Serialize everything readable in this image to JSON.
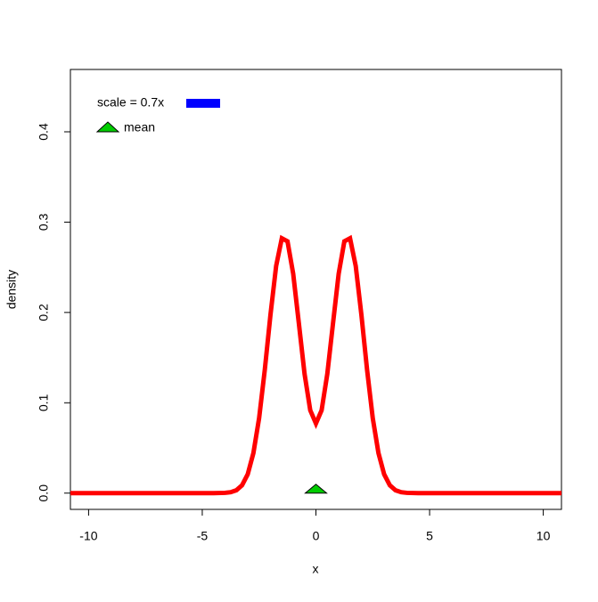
{
  "chart_data": {
    "type": "line",
    "xlabel": "x",
    "ylabel": "density",
    "x": [
      -11,
      -4.5,
      -4,
      -3.75,
      -3.5,
      -3.25,
      -3,
      -2.75,
      -2.5,
      -2.25,
      -2,
      -1.75,
      -1.5,
      -1.25,
      -1,
      -0.75,
      -0.5,
      -0.25,
      0,
      0.25,
      0.5,
      0.75,
      1,
      1.25,
      1.5,
      1.75,
      2,
      2.25,
      2.5,
      2.75,
      3,
      3.25,
      3.5,
      3.75,
      4,
      4.5,
      11
    ],
    "series": [
      {
        "color": "#ff0000",
        "values": [
          0,
          0,
          0.0003,
          0.001,
          0.0032,
          0.0087,
          0.0209,
          0.0444,
          0.0829,
          0.1364,
          0.1974,
          0.2515,
          0.2821,
          0.2787,
          0.2428,
          0.1877,
          0.1319,
          0.0917,
          0.0771,
          0.0917,
          0.1319,
          0.1877,
          0.2428,
          0.2787,
          0.2821,
          0.2515,
          0.1974,
          0.1364,
          0.0829,
          0.0444,
          0.0209,
          0.0087,
          0.0032,
          0.001,
          0.0003,
          0,
          0
        ]
      }
    ],
    "mean": {
      "x": 0,
      "y": 0,
      "color": "#00cc00"
    },
    "legend": [
      {
        "label": "scale = 0.7x",
        "color": "#0000ff"
      },
      {
        "label": "mean",
        "color": "#00cc00"
      }
    ],
    "xlim": [
      -10.8,
      10.8
    ],
    "ylim": [
      -0.018,
      0.469
    ],
    "xticks": [
      -10,
      -5,
      0,
      5,
      10
    ],
    "yticks": [
      {
        "value": 0,
        "label": "0.0"
      },
      0.1,
      0.2,
      0.3,
      0.4
    ]
  }
}
